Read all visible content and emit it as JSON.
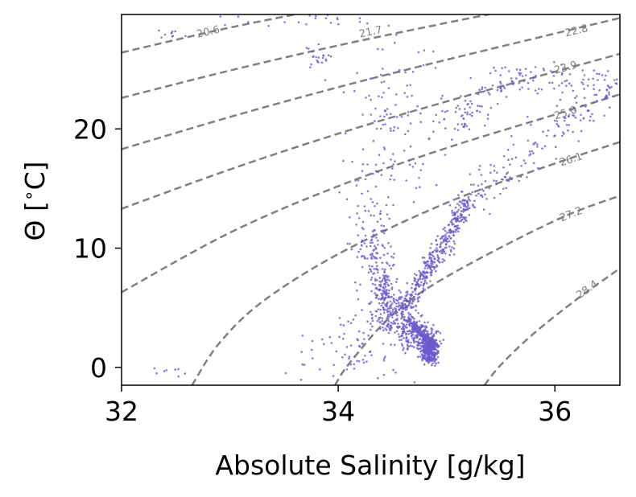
{
  "chart_data": {
    "type": "scatter",
    "title": "",
    "xlabel": "Absolute Salinity [g/kg]",
    "ylabel": "Θ [$^\\circ$C]",
    "ylabel_parts": {
      "symbol": "Θ [",
      "degree": "∘",
      "unit": "C]"
    },
    "xlim": [
      32.0,
      36.6
    ],
    "ylim": [
      -1.5,
      29.6
    ],
    "x_ticks": [
      32,
      34,
      36
    ],
    "x_tick_labels": [
      "32",
      "34",
      "36"
    ],
    "y_ticks": [
      0,
      10,
      20
    ],
    "y_tick_labels": [
      "0",
      "10",
      "20"
    ],
    "grid": false,
    "colors": {
      "points": "#6a5acd",
      "contours": "#808080",
      "frame": "#000000"
    },
    "contours": {
      "description_style": "dashed density isopycnals",
      "levels": [
        "20.6",
        "21.7",
        "22.8",
        "23.9",
        "25.0",
        "26.1",
        "27.2",
        "28.4"
      ],
      "curves": [
        {
          "label": "20.6",
          "points": [
            [
              32.0,
              26.4
            ],
            [
              33.0,
              28.5
            ],
            [
              34.0,
              30.3
            ]
          ],
          "label_at": [
            32.8,
            28.1
          ]
        },
        {
          "label": "21.7",
          "points": [
            [
              32.0,
              22.6
            ],
            [
              33.0,
              24.9
            ],
            [
              34.0,
              27.0
            ],
            [
              35.0,
              28.9
            ],
            [
              35.5,
              29.8
            ]
          ],
          "label_at": [
            34.3,
            28.1
          ]
        },
        {
          "label": "22.8",
          "points": [
            [
              32.0,
              18.3
            ],
            [
              33.0,
              21.0
            ],
            [
              34.0,
              23.5
            ],
            [
              35.0,
              25.8
            ],
            [
              36.0,
              28.0
            ],
            [
              36.6,
              29.3
            ]
          ],
          "label_at": [
            36.2,
            28.2
          ]
        },
        {
          "label": "23.9",
          "points": [
            [
              32.0,
              13.3
            ],
            [
              33.0,
              16.6
            ],
            [
              34.0,
              19.6
            ],
            [
              35.0,
              22.3
            ],
            [
              36.0,
              24.8
            ],
            [
              36.6,
              26.3
            ]
          ],
          "label_at": [
            36.1,
            25.1
          ]
        },
        {
          "label": "25.0",
          "points": [
            [
              32.0,
              6.3
            ],
            [
              33.0,
              11.3
            ],
            [
              34.0,
              15.2
            ],
            [
              35.0,
              18.4
            ],
            [
              36.0,
              21.2
            ],
            [
              36.6,
              22.9
            ]
          ],
          "label_at": [
            36.1,
            21.3
          ]
        },
        {
          "label": "26.1",
          "points": [
            [
              32.65,
              -1.5
            ],
            [
              32.9,
              2.0
            ],
            [
              33.3,
              5.5
            ],
            [
              34.0,
              9.5
            ],
            [
              35.0,
              13.8
            ],
            [
              36.0,
              17.1
            ],
            [
              36.6,
              18.9
            ]
          ],
          "label_at": [
            36.15,
            17.4
          ]
        },
        {
          "label": "27.2",
          "points": [
            [
              33.97,
              -1.5
            ],
            [
              34.1,
              0.3
            ],
            [
              34.5,
              4.4
            ],
            [
              35.0,
              7.6
            ],
            [
              36.0,
              12.3
            ],
            [
              36.6,
              14.4
            ]
          ],
          "label_at": [
            36.15,
            12.8
          ]
        },
        {
          "label": "28.4",
          "points": [
            [
              35.35,
              -1.5
            ],
            [
              35.5,
              0.2
            ],
            [
              35.8,
              2.8
            ],
            [
              36.2,
              5.7
            ],
            [
              36.6,
              8.3
            ]
          ],
          "label_at": [
            36.3,
            6.5
          ]
        }
      ]
    },
    "series": [
      {
        "name": "profile points",
        "color": "#6a5acd",
        "clusters": [
          {
            "x": 34.84,
            "y": 1.4,
            "sx": 0.04,
            "sy": 0.5,
            "n": 320
          },
          {
            "x": 34.72,
            "y": 2.6,
            "sx": 0.1,
            "sy": 0.6,
            "n": 160
          },
          {
            "x": 34.55,
            "y": 4.5,
            "sx": 0.1,
            "sy": 1.0,
            "n": 160
          },
          {
            "x": 34.42,
            "y": 6.5,
            "sx": 0.06,
            "sy": 1.2,
            "n": 120
          },
          {
            "x": 34.35,
            "y": 9.5,
            "sx": 0.08,
            "sy": 2.0,
            "n": 80
          },
          {
            "x": 34.3,
            "y": 13.5,
            "sx": 0.12,
            "sy": 2.5,
            "n": 60
          },
          {
            "x": 34.5,
            "y": 19.0,
            "sx": 0.25,
            "sy": 3.0,
            "n": 70
          },
          {
            "x": 34.5,
            "y": 24.0,
            "sx": 0.3,
            "sy": 2.5,
            "n": 40
          },
          {
            "x": 34.3,
            "y": 2.0,
            "sx": 0.2,
            "sy": 1.8,
            "n": 60
          },
          {
            "x": 33.9,
            "y": 1.5,
            "sx": 0.3,
            "sy": 1.5,
            "n": 25
          },
          {
            "x": 33.8,
            "y": 26.2,
            "sx": 0.06,
            "sy": 0.6,
            "n": 20
          },
          {
            "x": 33.7,
            "y": 29.3,
            "sx": 0.5,
            "sy": 0.4,
            "n": 30
          },
          {
            "x": 32.5,
            "y": -0.2,
            "sx": 0.1,
            "sy": 0.3,
            "n": 8
          },
          {
            "x": 32.4,
            "y": 27.9,
            "sx": 0.1,
            "sy": 0.3,
            "n": 10
          }
        ],
        "segments": [
          {
            "from": [
              34.62,
              5.0
            ],
            "to": [
              35.2,
              14.0
            ],
            "n": 380,
            "spread_x": 0.04,
            "spread_y": 0.35
          },
          {
            "from": [
              35.2,
              14.0
            ],
            "to": [
              36.6,
              24.0
            ],
            "n": 170,
            "spread_x": 0.08,
            "spread_y": 0.9
          },
          {
            "from": [
              35.0,
              20.0
            ],
            "to": [
              35.6,
              24.6
            ],
            "n": 80,
            "spread_x": 0.1,
            "spread_y": 0.6
          },
          {
            "from": [
              35.6,
              24.3
            ],
            "to": [
              36.6,
              23.8
            ],
            "n": 70,
            "spread_x": 0.1,
            "spread_y": 0.6
          },
          {
            "from": [
              34.9,
              1.8
            ],
            "to": [
              34.65,
              4.0
            ],
            "n": 200,
            "spread_x": 0.02,
            "spread_y": 0.2
          }
        ]
      }
    ]
  }
}
